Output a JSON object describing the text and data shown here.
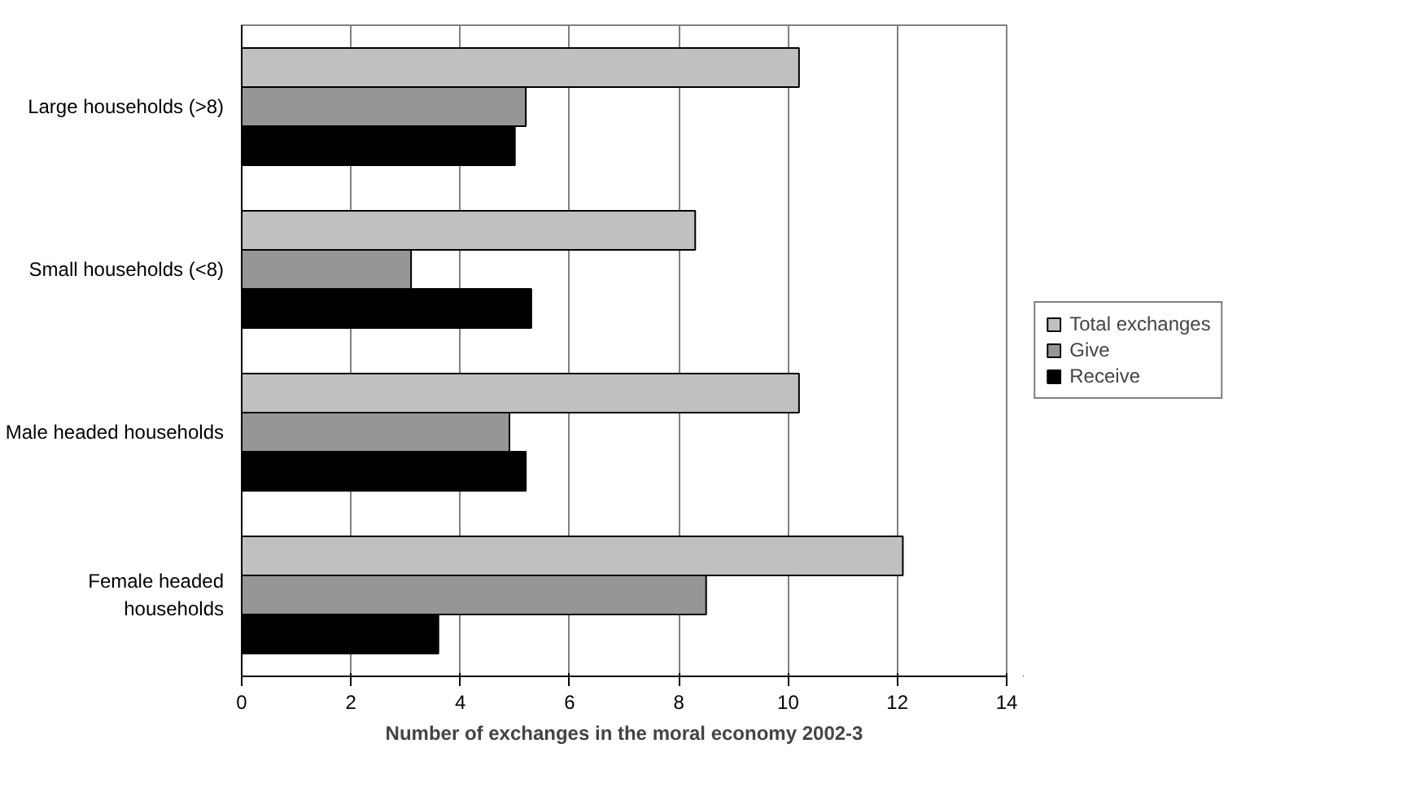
{
  "chart_data": {
    "type": "bar",
    "orientation": "horizontal",
    "xlabel": "Number of exchanges in the moral economy 2002-3",
    "categories": [
      "Large households (>8)",
      "Small households (<8)",
      "Male headed households",
      "Female headed households"
    ],
    "series": [
      {
        "name": "Total exchanges",
        "color": "#c0c0c0",
        "values": [
          10.2,
          8.3,
          10.2,
          12.1
        ]
      },
      {
        "name": "Give",
        "color": "#969696",
        "values": [
          5.2,
          3.1,
          4.9,
          8.5
        ]
      },
      {
        "name": "Receive",
        "color": "#000000",
        "values": [
          5.0,
          5.3,
          5.2,
          3.6
        ]
      }
    ],
    "xlim": [
      0,
      14
    ],
    "xticks": [
      0,
      2,
      4,
      6,
      8,
      10,
      12,
      14
    ],
    "grid": "x",
    "legend": "right"
  }
}
